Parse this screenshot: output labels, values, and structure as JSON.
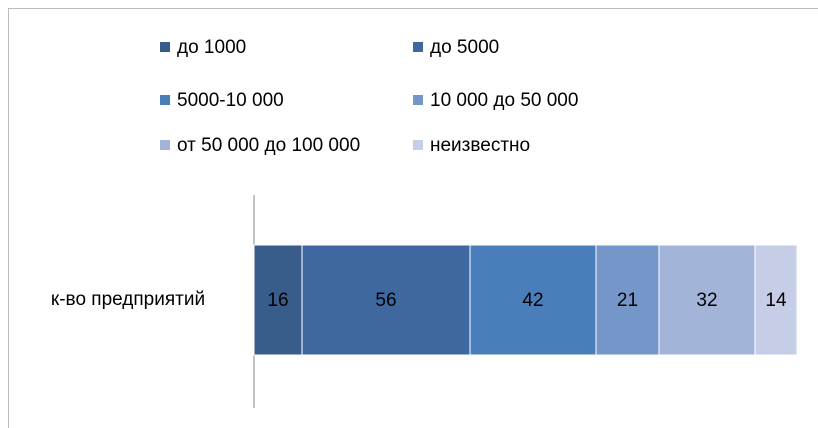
{
  "chart_data": {
    "type": "stacked-bar",
    "orientation": "horizontal",
    "legend": "top",
    "categories": [
      "к-во предприятий"
    ],
    "series": [
      {
        "name": "до 1000",
        "color": "#385d8a",
        "values": [
          16
        ]
      },
      {
        "name": "до 5000",
        "color": "#3f68a0",
        "values": [
          56
        ]
      },
      {
        "name": "5000-10 000",
        "color": "#4a7ebb",
        "values": [
          42
        ]
      },
      {
        "name": "10 000 до 50 000",
        "color": "#7596c9",
        "values": [
          21
        ]
      },
      {
        "name": "от 50 000 до 100 000",
        "color": "#a2b4d8",
        "values": [
          32
        ]
      },
      {
        "name": "неизвестно",
        "color": "#c5cee6",
        "values": [
          14
        ]
      }
    ]
  }
}
